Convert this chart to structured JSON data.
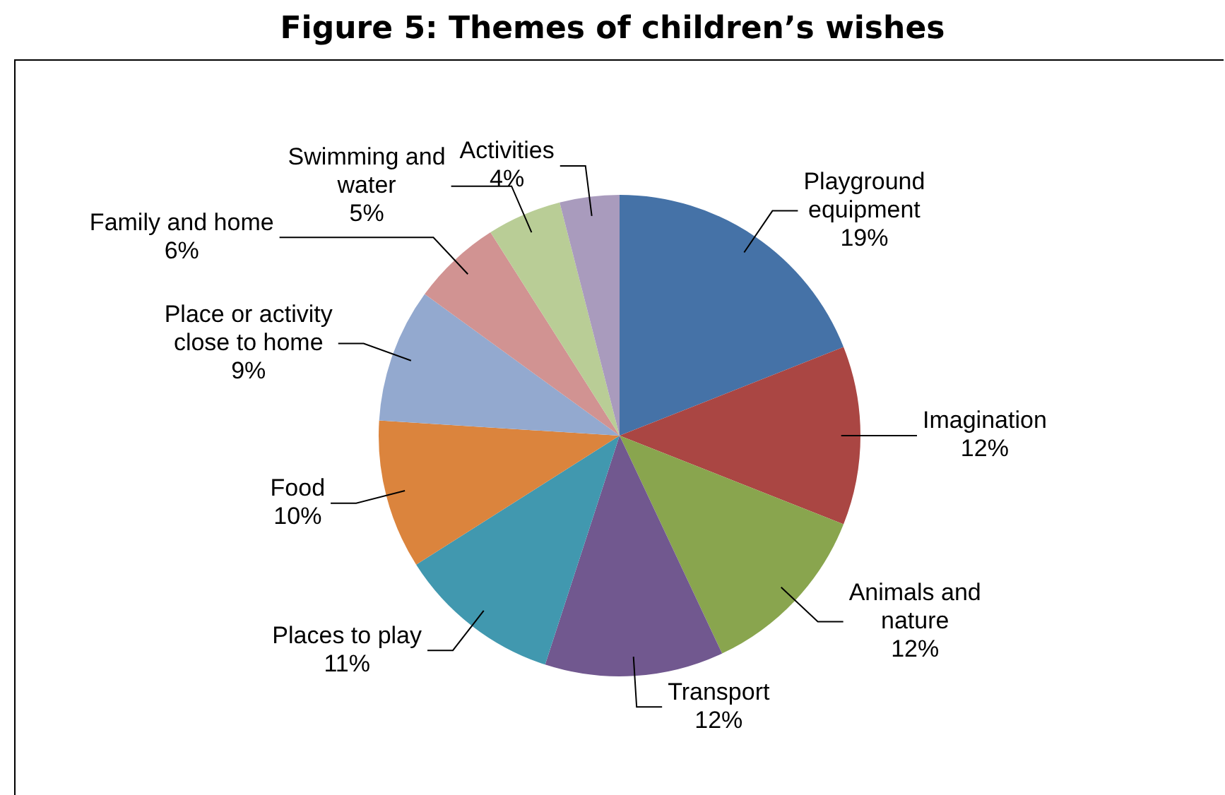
{
  "chart_data": {
    "type": "pie",
    "title": "Figure 5: Themes of children’s wishes",
    "categories": [
      "Playground equipment",
      "Imagination",
      "Animals and nature",
      "Transport",
      "Places to play",
      "Food",
      "Place or activity close to home",
      "Family and home",
      "Swimming and water",
      "Activities"
    ],
    "values": [
      19,
      12,
      12,
      12,
      11,
      10,
      9,
      6,
      5,
      4
    ],
    "value_labels": [
      "19%",
      "12%",
      "12%",
      "12%",
      "11%",
      "10%",
      "9%",
      "6%",
      "5%",
      "4%"
    ],
    "colors": [
      "#4572a7",
      "#aa4643",
      "#89a54e",
      "#71588f",
      "#4198af",
      "#db843d",
      "#93a9cf",
      "#d19392",
      "#b9cd96",
      "#a99bbd"
    ],
    "legend": false
  }
}
